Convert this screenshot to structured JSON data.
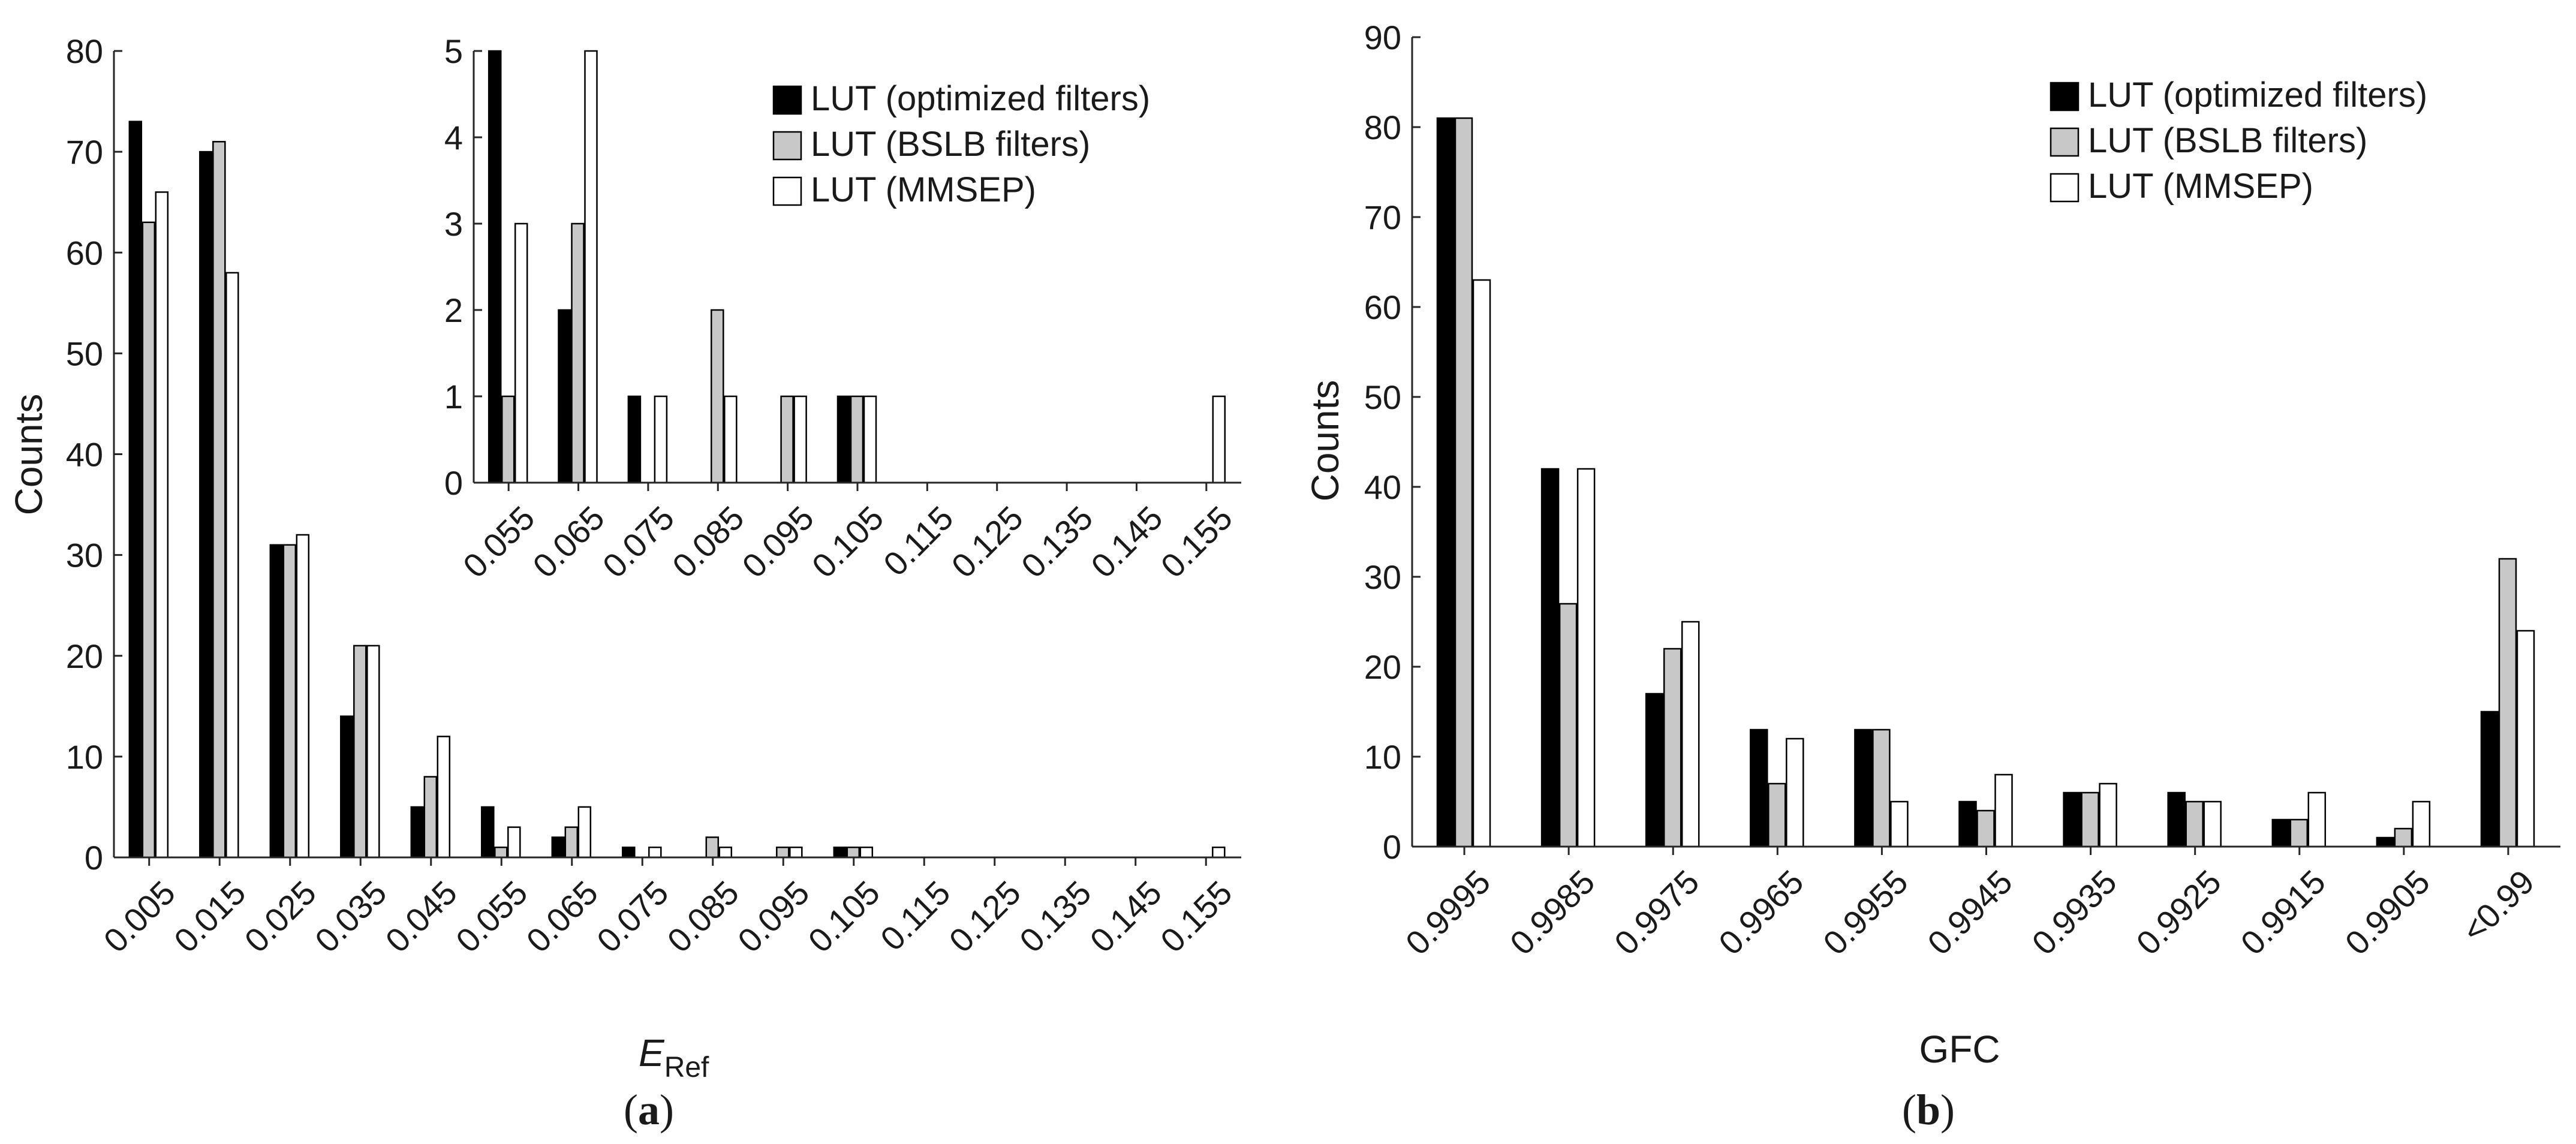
{
  "chart_data": [
    {
      "id": "a",
      "type": "bar",
      "panel_label": "a",
      "xlabel_main": "E",
      "xlabel_sub": "Ref",
      "ylabel": "Counts",
      "ylim": [
        0,
        80
      ],
      "yticks": [
        0,
        10,
        20,
        30,
        40,
        50,
        60,
        70,
        80
      ],
      "categories": [
        "0.005",
        "0.015",
        "0.025",
        "0.035",
        "0.045",
        "0.055",
        "0.065",
        "0.075",
        "0.085",
        "0.095",
        "0.105",
        "0.115",
        "0.125",
        "0.135",
        "0.145",
        "0.155"
      ],
      "series": [
        {
          "name": "LUT (optimized filters)",
          "color": "#000000",
          "values": [
            73,
            70,
            31,
            14,
            5,
            5,
            2,
            1,
            0,
            0,
            1,
            0,
            0,
            0,
            0,
            0
          ]
        },
        {
          "name": "LUT (BSLB filters)",
          "color": "#c8c8c8",
          "values": [
            63,
            71,
            31,
            21,
            8,
            1,
            3,
            0,
            2,
            1,
            1,
            0,
            0,
            0,
            0,
            0
          ]
        },
        {
          "name": "LUT (MMSEP)",
          "color": "#ffffff",
          "values": [
            66,
            58,
            32,
            21,
            12,
            3,
            5,
            1,
            1,
            1,
            1,
            0,
            0,
            0,
            0,
            1
          ]
        }
      ],
      "inset": {
        "type": "bar",
        "ylim": [
          0,
          5
        ],
        "yticks": [
          0,
          1,
          2,
          3,
          4,
          5
        ],
        "categories": [
          "0.055",
          "0.065",
          "0.075",
          "0.085",
          "0.095",
          "0.105",
          "0.115",
          "0.125",
          "0.135",
          "0.145",
          "0.155"
        ],
        "series": [
          {
            "name": "LUT (optimized filters)",
            "color": "#000000",
            "values": [
              5,
              2,
              1,
              0,
              0,
              1,
              0,
              0,
              0,
              0,
              0
            ]
          },
          {
            "name": "LUT (BSLB filters)",
            "color": "#c8c8c8",
            "values": [
              1,
              3,
              0,
              2,
              1,
              1,
              0,
              0,
              0,
              0,
              0
            ]
          },
          {
            "name": "LUT (MMSEP)",
            "color": "#ffffff",
            "values": [
              3,
              5,
              1,
              1,
              1,
              1,
              0,
              0,
              0,
              0,
              1
            ]
          }
        ]
      }
    },
    {
      "id": "b",
      "type": "bar",
      "panel_label": "b",
      "xlabel": "GFC",
      "ylabel": "Counts",
      "ylim": [
        0,
        90
      ],
      "yticks": [
        0,
        10,
        20,
        30,
        40,
        50,
        60,
        70,
        80,
        90
      ],
      "categories": [
        "0.9995",
        "0.9985",
        "0.9975",
        "0.9965",
        "0.9955",
        "0.9945",
        "0.9935",
        "0.9925",
        "0.9915",
        "0.9905",
        "<0.99"
      ],
      "series": [
        {
          "name": "LUT (optimized filters)",
          "color": "#000000",
          "values": [
            81,
            42,
            17,
            13,
            13,
            5,
            6,
            6,
            3,
            1,
            15
          ]
        },
        {
          "name": "LUT (BSLB filters)",
          "color": "#c8c8c8",
          "values": [
            81,
            27,
            22,
            7,
            13,
            4,
            6,
            5,
            3,
            2,
            32
          ]
        },
        {
          "name": "LUT (MMSEP)",
          "color": "#ffffff",
          "values": [
            63,
            42,
            25,
            12,
            5,
            8,
            7,
            5,
            6,
            5,
            24
          ]
        }
      ]
    }
  ]
}
